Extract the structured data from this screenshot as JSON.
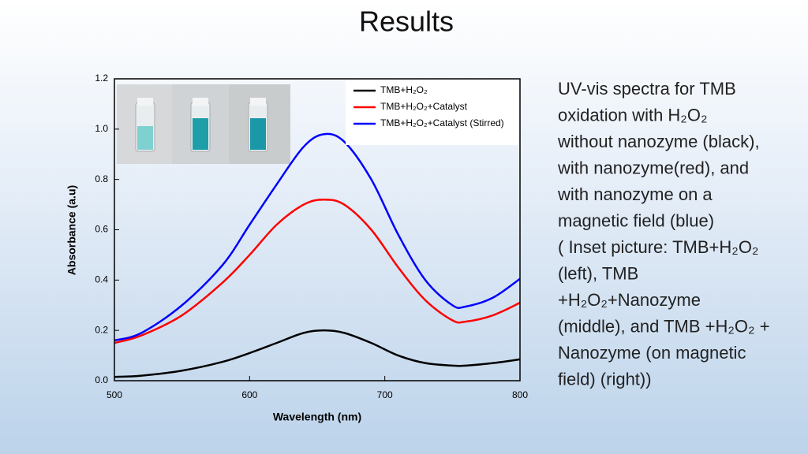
{
  "title": "Results",
  "description_lines": [
    "UV-vis spectra for TMB",
    "oxidation with H₂O₂",
    "without nanozyme (black),",
    "with nanozyme(red), and",
    "with nanozyme on a",
    "magnetic field (blue)",
    "( Inset picture: TMB+H₂O₂",
    "(left), TMB",
    "+H₂O₂+Nanozyme",
    "(middle), and TMB +H₂O₂ +",
    "Nanozyme (on magnetic",
    "field) (right))"
  ],
  "chart_data": {
    "type": "line",
    "xlabel": "Wavelength (nm)",
    "ylabel": "Absorbance (a.u)",
    "x": [
      500,
      520,
      550,
      580,
      600,
      620,
      640,
      655,
      670,
      690,
      710,
      730,
      750,
      760,
      780,
      800
    ],
    "series": [
      {
        "name": "TMB+H₂O₂",
        "color": "#000000",
        "values": [
          0.015,
          0.02,
          0.04,
          0.075,
          0.11,
          0.15,
          0.19,
          0.2,
          0.19,
          0.15,
          0.1,
          0.07,
          0.06,
          0.06,
          0.07,
          0.085
        ]
      },
      {
        "name": "TMB+H₂O₂+Catalyst",
        "color": "#ff0000",
        "values": [
          0.15,
          0.18,
          0.26,
          0.39,
          0.5,
          0.62,
          0.7,
          0.72,
          0.7,
          0.6,
          0.45,
          0.32,
          0.24,
          0.235,
          0.26,
          0.31
        ]
      },
      {
        "name": "TMB+H₂O₂+Catalyst (Stirred)",
        "color": "#0000ff",
        "values": [
          0.16,
          0.19,
          0.3,
          0.46,
          0.62,
          0.78,
          0.93,
          0.98,
          0.95,
          0.8,
          0.58,
          0.4,
          0.3,
          0.295,
          0.33,
          0.405
        ]
      }
    ],
    "xlim": [
      500,
      800
    ],
    "xticks": [
      500,
      600,
      700,
      800
    ],
    "ylim": [
      0,
      1.2
    ],
    "yticks": [
      {
        "value": 0,
        "label": "0.0"
      },
      0.2,
      0.4,
      0.6,
      0.8,
      {
        "value": 1,
        "label": "1.0"
      },
      1.2
    ],
    "legend": "upper right"
  }
}
